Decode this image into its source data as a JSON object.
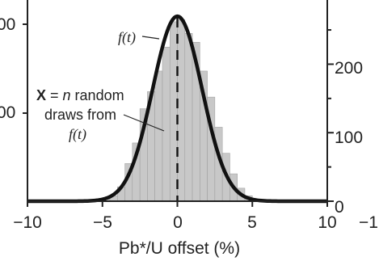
{
  "chart_data": {
    "type": "bar",
    "xlabel": "Pb*/U offset (%)",
    "xlim": [
      -10,
      10
    ],
    "x_ticks": [
      "−10",
      "−5",
      "0",
      "5",
      "10"
    ],
    "right_x_tick": "−1",
    "ylim_right": [
      0,
      280
    ],
    "right_ticks": [
      "200",
      "100",
      "0"
    ],
    "left_tick_fragments": [
      "00",
      "00"
    ],
    "histogram": {
      "bin_width": 0.5,
      "bin_starts": [
        -6.0,
        -5.5,
        -5.0,
        -4.5,
        -4.0,
        -3.5,
        -3.0,
        -2.5,
        -2.0,
        -1.5,
        -1.0,
        -0.5,
        0.0,
        0.5,
        1.0,
        1.5,
        2.0,
        2.5,
        3.0,
        3.5,
        4.0,
        4.5,
        5.0,
        5.5
      ],
      "counts": [
        0,
        1,
        3,
        8,
        21,
        55,
        85,
        135,
        160,
        190,
        225,
        262,
        265,
        245,
        232,
        190,
        152,
        108,
        70,
        40,
        19,
        8,
        2,
        0
      ]
    },
    "curve": {
      "label": "f(t)",
      "mean": 0,
      "sd": 1.65,
      "peak": 270
    },
    "annotations": {
      "bold_x": "X",
      "draws_line1_rest": " = ",
      "draws_n": "n",
      "draws_line1_tail": " random",
      "draws_line2": "draws from",
      "draws_line3": "f(t)"
    },
    "colors": {
      "bars": "#c8c8c8",
      "bar_edge": "#9a9a9a",
      "curve": "#111111",
      "axis": "#222222"
    }
  }
}
